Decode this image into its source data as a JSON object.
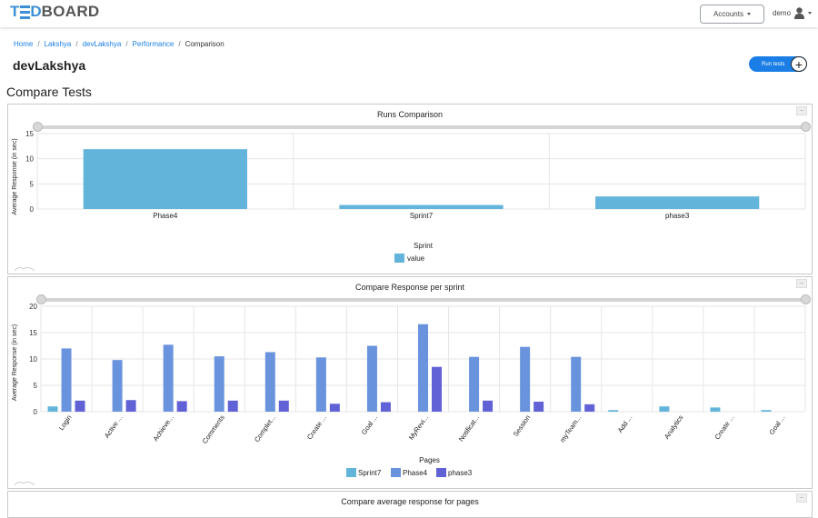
{
  "navbar": {
    "logo_letters": [
      "T",
      "D",
      "BOARD"
    ],
    "accounts_label": "Accounts",
    "user_name": "demo"
  },
  "breadcrumb": {
    "items": [
      "Home",
      "Lakshya",
      "devLakshya",
      "Performance"
    ],
    "current": "Comparison"
  },
  "project_title": "devLakshya",
  "run_tests_label": "Run tests",
  "section_title": "Compare Tests",
  "colors": {
    "accent": "#1a7ee6",
    "sprint7": "#62b4db",
    "phase4": "#6a93de",
    "phase3": "#6162d6"
  },
  "chart_data": [
    {
      "type": "bar",
      "title": "Runs Comparison",
      "categories": [
        "Phase4",
        "Sprint7",
        "phase3"
      ],
      "series": [
        {
          "name": "value",
          "values": [
            11.9,
            0.8,
            2.5
          ]
        }
      ],
      "xlabel": "Sprint",
      "ylabel": "Average Response (in sec)",
      "yticks": [
        0,
        5,
        10,
        15
      ],
      "ylim": [
        0,
        15
      ],
      "grid": true,
      "legend": "bottom"
    },
    {
      "type": "bar",
      "title": "Compare Response per sprint",
      "categories": [
        "Login",
        "Active ...",
        "Achieve...",
        "Comments",
        "Complet...",
        "Create ...",
        "Goal ...",
        "MyRevi...",
        "Notificat...",
        "Session",
        "myTeam...",
        "Add ...",
        "Analytics",
        "Create ...",
        "Goal ..."
      ],
      "series": [
        {
          "name": "Sprint7",
          "values": [
            1.0,
            0,
            0,
            0,
            0,
            0,
            0,
            0,
            0,
            0,
            0,
            0.3,
            1.0,
            0.8,
            0.3
          ]
        },
        {
          "name": "Phase4",
          "values": [
            12.0,
            9.8,
            12.7,
            10.5,
            11.3,
            10.3,
            12.5,
            16.6,
            10.4,
            12.3,
            10.4,
            0,
            0,
            0,
            0
          ]
        },
        {
          "name": "phase3",
          "values": [
            2.1,
            2.2,
            2.0,
            2.1,
            2.1,
            1.5,
            1.8,
            8.5,
            2.1,
            1.9,
            1.4,
            0,
            0,
            0,
            0
          ]
        }
      ],
      "xlabel": "Pages",
      "ylabel": "Average Response (in sec)",
      "yticks": [
        0,
        5,
        10,
        15,
        20
      ],
      "ylim": [
        0,
        20
      ],
      "grid": true,
      "legend": "bottom"
    }
  ],
  "third_panel_title": "Compare average response for pages"
}
